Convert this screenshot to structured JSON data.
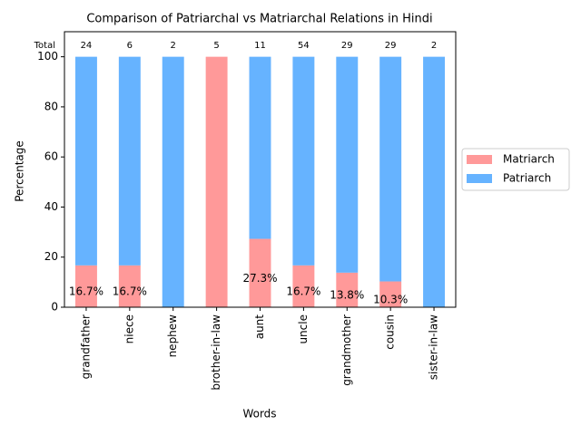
{
  "chart_data": {
    "type": "bar",
    "stacked": true,
    "title": "Comparison of Patriarchal vs Matriarchal Relations in Hindi",
    "x_label": "Words",
    "y_label": "Percentage",
    "categories": [
      "grandfather",
      "niece",
      "nephew",
      "brother-in-law",
      "aunt",
      "uncle",
      "grandmother",
      "cousin",
      "sister-in-law"
    ],
    "series": [
      {
        "name": "Matriarch",
        "color": "#ff9999",
        "values": [
          16.7,
          16.7,
          0,
          100,
          27.3,
          16.7,
          13.8,
          10.3,
          0
        ],
        "value_labels": [
          "16.7%",
          "16.7%",
          null,
          null,
          "27.3%",
          "16.7%",
          "13.8%",
          "10.3%",
          null
        ]
      },
      {
        "name": "Patriarch",
        "color": "#66b3ff",
        "values": [
          83.3,
          83.3,
          100,
          0,
          72.7,
          83.3,
          86.2,
          89.7,
          100
        ]
      }
    ],
    "totals": {
      "label": "Total",
      "values": [
        24,
        6,
        2,
        5,
        11,
        54,
        29,
        29,
        2
      ]
    },
    "ylim": [
      0,
      110
    ],
    "yticks": [
      0,
      20,
      40,
      60,
      80,
      100
    ],
    "grid": false,
    "legend": "right"
  }
}
